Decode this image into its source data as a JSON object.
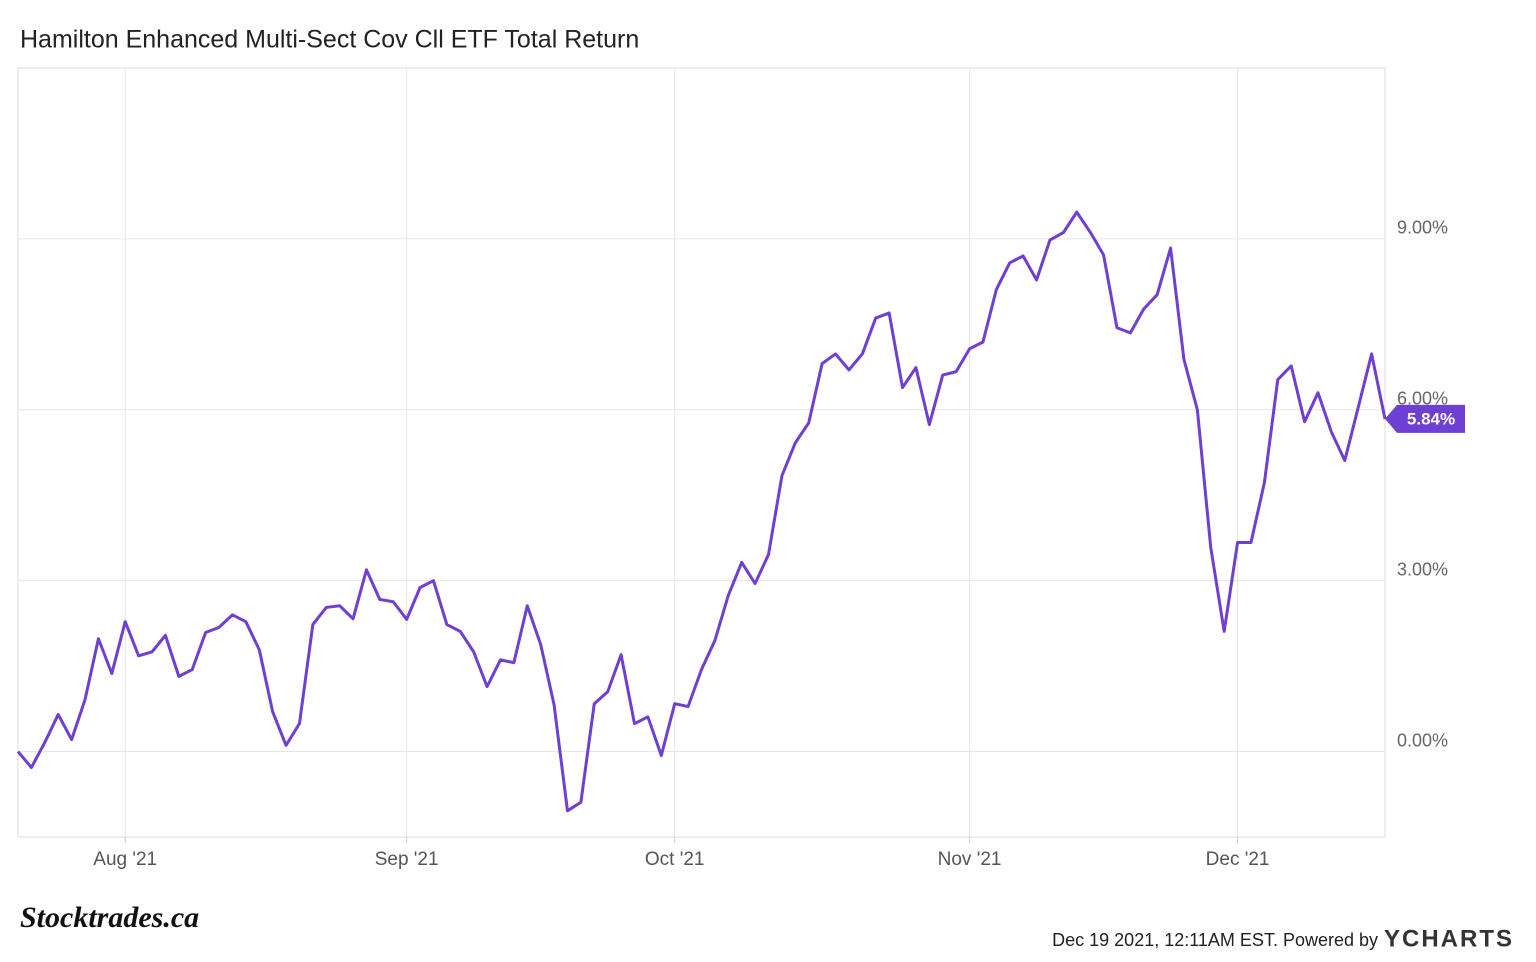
{
  "chart_data": {
    "type": "line",
    "title": "Hamilton Enhanced Multi-Sect Cov Cll ETF Total Return",
    "categories": [
      null,
      null,
      null,
      null,
      null,
      null,
      null,
      null,
      "Aug '21",
      null,
      null,
      null,
      null,
      null,
      null,
      null,
      null,
      null,
      null,
      null,
      null,
      null,
      null,
      null,
      null,
      null,
      null,
      null,
      null,
      "Sep '21",
      null,
      null,
      null,
      null,
      null,
      null,
      null,
      null,
      null,
      null,
      null,
      null,
      null,
      null,
      null,
      null,
      null,
      null,
      null,
      "Oct '21",
      null,
      null,
      null,
      null,
      null,
      null,
      null,
      null,
      null,
      null,
      null,
      null,
      null,
      null,
      null,
      null,
      null,
      null,
      null,
      null,
      null,
      "Nov '21",
      null,
      null,
      null,
      null,
      null,
      null,
      null,
      null,
      null,
      null,
      null,
      null,
      null,
      null,
      null,
      null,
      null,
      null,
      null,
      "Dec '21",
      null,
      null,
      null,
      null,
      null,
      null,
      null,
      null,
      null,
      null,
      null
    ],
    "values": [
      0,
      -0.28,
      0.16,
      0.65,
      0.21,
      0.91,
      1.98,
      1.37,
      2.28,
      1.68,
      1.75,
      2.04,
      1.32,
      1.44,
      2.09,
      2.18,
      2.4,
      2.28,
      1.79,
      0.7,
      0.11,
      0.49,
      2.23,
      2.53,
      2.56,
      2.33,
      3.19,
      2.67,
      2.63,
      2.32,
      2.88,
      3.0,
      2.23,
      2.11,
      1.75,
      1.14,
      1.61,
      1.56,
      2.56,
      1.88,
      0.82,
      -1.04,
      -0.89,
      0.84,
      1.05,
      1.7,
      0.49,
      0.61,
      -0.07,
      0.84,
      0.79,
      1.44,
      1.95,
      2.74,
      3.32,
      2.95,
      3.46,
      4.84,
      5.42,
      5.77,
      6.81,
      6.98,
      6.7,
      6.98,
      7.61,
      7.7,
      6.39,
      6.74,
      5.74,
      6.61,
      6.67,
      7.07,
      7.19,
      8.11,
      8.58,
      8.7,
      8.28,
      8.98,
      9.11,
      9.47,
      9.12,
      8.72,
      7.44,
      7.35,
      7.77,
      8.02,
      8.84,
      6.88,
      6.0,
      3.58,
      2.11,
      3.67,
      3.67,
      4.72,
      6.53,
      6.77,
      5.79,
      6.3,
      5.61,
      5.11,
      6.04,
      6.98,
      5.84
    ],
    "value_labels": [
      null,
      null,
      null,
      null,
      null,
      null,
      null,
      null,
      null,
      null,
      null,
      null,
      null,
      null,
      null,
      null,
      null,
      null,
      null,
      null,
      null,
      null,
      null,
      null,
      null,
      null,
      null,
      null,
      null,
      null,
      null,
      null,
      null,
      null,
      null,
      null,
      null,
      null,
      null,
      null,
      null,
      null,
      null,
      null,
      null,
      null,
      null,
      null,
      null,
      null,
      null,
      null,
      null,
      null,
      null,
      null,
      null,
      null,
      null,
      null,
      null,
      null,
      null,
      null,
      null,
      null,
      null,
      null,
      null,
      null,
      null,
      null,
      null,
      null,
      null,
      null,
      null,
      null,
      null,
      null,
      null,
      null,
      null,
      null,
      null,
      null,
      null,
      null,
      null,
      null,
      null,
      null,
      null,
      null,
      null,
      null,
      null,
      null,
      null,
      null,
      null,
      null,
      "5.84%"
    ],
    "color": "#6f3fd4",
    "ylim": [
      -1.5,
      12
    ],
    "yticks": [
      {
        "value": 0,
        "label": "0.00%"
      },
      {
        "value": 3,
        "label": "3.00%"
      },
      {
        "value": 6,
        "label": "6.00%"
      },
      {
        "value": 9,
        "label": "9.00%"
      }
    ],
    "grid": true
  },
  "footer": {
    "brand": "Stocktrades.ca",
    "stamp": "Dec 19 2021, 12:11AM EST. Powered by",
    "provider": "YCHARTS"
  }
}
